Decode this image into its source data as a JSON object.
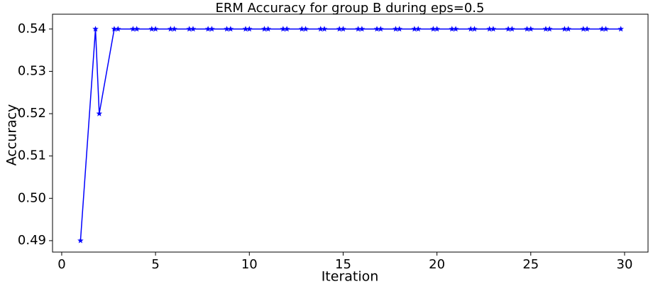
{
  "chart_data": {
    "type": "line",
    "title": "ERM Accuracy for group B during eps=0.5",
    "x_label": "Iteration",
    "y_label": "Accuracy",
    "x": [
      1,
      1.8,
      2,
      2.8,
      3,
      3.8,
      4,
      4.8,
      5,
      5.8,
      6,
      6.8,
      7,
      7.8,
      8,
      8.8,
      9,
      9.8,
      10,
      10.8,
      11,
      11.8,
      12,
      12.8,
      13,
      13.8,
      14,
      14.8,
      15,
      15.8,
      16,
      16.8,
      17,
      17.8,
      18,
      18.8,
      19,
      19.8,
      20,
      20.8,
      21,
      21.8,
      22,
      22.8,
      23,
      23.8,
      24,
      24.8,
      25,
      25.8,
      26,
      26.8,
      27,
      27.8,
      28,
      28.8,
      29,
      29.8
    ],
    "series": [
      {
        "color": "#0000ff",
        "values": [
          0.49,
          0.54,
          0.52,
          0.54,
          0.54,
          0.54,
          0.54,
          0.54,
          0.54,
          0.54,
          0.54,
          0.54,
          0.54,
          0.54,
          0.54,
          0.54,
          0.54,
          0.54,
          0.54,
          0.54,
          0.54,
          0.54,
          0.54,
          0.54,
          0.54,
          0.54,
          0.54,
          0.54,
          0.54,
          0.54,
          0.54,
          0.54,
          0.54,
          0.54,
          0.54,
          0.54,
          0.54,
          0.54,
          0.54,
          0.54,
          0.54,
          0.54,
          0.54,
          0.54,
          0.54,
          0.54,
          0.54,
          0.54,
          0.54,
          0.54,
          0.54,
          0.54,
          0.54,
          0.54,
          0.54,
          0.54,
          0.54,
          0.54
        ]
      }
    ],
    "xlim": [
      -0.49,
      31.25
    ],
    "xticks": [
      0,
      5,
      10,
      15,
      20,
      25,
      30
    ],
    "ylim": [
      0.4873,
      0.5435
    ],
    "yticks": [
      0.49,
      {
        "value": 0.5,
        "label": "0.50"
      },
      0.51,
      0.52,
      0.53,
      0.54
    ]
  }
}
